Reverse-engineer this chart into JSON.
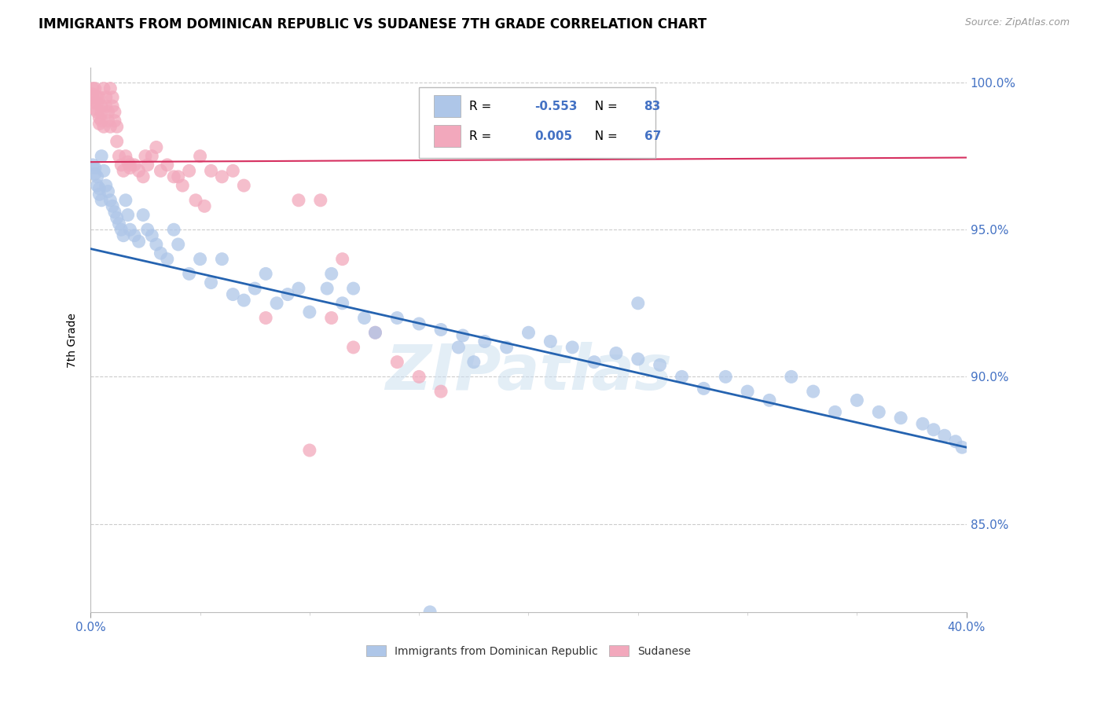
{
  "title": "IMMIGRANTS FROM DOMINICAN REPUBLIC VS SUDANESE 7TH GRADE CORRELATION CHART",
  "source": "Source: ZipAtlas.com",
  "ylabel": "7th Grade",
  "legend_blue_label": "Immigrants from Dominican Republic",
  "legend_pink_label": "Sudanese",
  "blue_color": "#aec6e8",
  "pink_color": "#f2a8bc",
  "blue_line_color": "#2563b0",
  "pink_line_color": "#d63060",
  "watermark": "ZIPatlas",
  "blue_scatter_x": [
    0.001,
    0.002,
    0.002,
    0.003,
    0.003,
    0.004,
    0.004,
    0.005,
    0.005,
    0.006,
    0.007,
    0.008,
    0.009,
    0.01,
    0.011,
    0.012,
    0.013,
    0.014,
    0.015,
    0.016,
    0.017,
    0.018,
    0.02,
    0.022,
    0.024,
    0.026,
    0.028,
    0.03,
    0.032,
    0.035,
    0.038,
    0.04,
    0.045,
    0.05,
    0.055,
    0.06,
    0.065,
    0.07,
    0.075,
    0.08,
    0.085,
    0.09,
    0.095,
    0.1,
    0.11,
    0.115,
    0.12,
    0.125,
    0.13,
    0.14,
    0.15,
    0.16,
    0.17,
    0.18,
    0.19,
    0.2,
    0.21,
    0.22,
    0.23,
    0.24,
    0.25,
    0.26,
    0.27,
    0.28,
    0.29,
    0.3,
    0.31,
    0.32,
    0.33,
    0.34,
    0.35,
    0.36,
    0.37,
    0.38,
    0.385,
    0.39,
    0.395,
    0.398,
    0.25,
    0.155,
    0.168,
    0.175,
    0.108
  ],
  "blue_scatter_y": [
    0.972,
    0.971,
    0.969,
    0.968,
    0.965,
    0.964,
    0.962,
    0.96,
    0.975,
    0.97,
    0.965,
    0.963,
    0.96,
    0.958,
    0.956,
    0.954,
    0.952,
    0.95,
    0.948,
    0.96,
    0.955,
    0.95,
    0.948,
    0.946,
    0.955,
    0.95,
    0.948,
    0.945,
    0.942,
    0.94,
    0.95,
    0.945,
    0.935,
    0.94,
    0.932,
    0.94,
    0.928,
    0.926,
    0.93,
    0.935,
    0.925,
    0.928,
    0.93,
    0.922,
    0.935,
    0.925,
    0.93,
    0.92,
    0.915,
    0.92,
    0.918,
    0.916,
    0.914,
    0.912,
    0.91,
    0.915,
    0.912,
    0.91,
    0.905,
    0.908,
    0.906,
    0.904,
    0.9,
    0.896,
    0.9,
    0.895,
    0.892,
    0.9,
    0.895,
    0.888,
    0.892,
    0.888,
    0.886,
    0.884,
    0.882,
    0.88,
    0.878,
    0.876,
    0.925,
    0.82,
    0.91,
    0.905,
    0.93
  ],
  "pink_scatter_x": [
    0.001,
    0.001,
    0.001,
    0.002,
    0.002,
    0.002,
    0.003,
    0.003,
    0.003,
    0.004,
    0.004,
    0.004,
    0.005,
    0.005,
    0.005,
    0.006,
    0.006,
    0.007,
    0.007,
    0.008,
    0.008,
    0.009,
    0.009,
    0.01,
    0.01,
    0.011,
    0.011,
    0.012,
    0.012,
    0.013,
    0.014,
    0.015,
    0.016,
    0.017,
    0.018,
    0.02,
    0.022,
    0.024,
    0.026,
    0.028,
    0.03,
    0.035,
    0.04,
    0.045,
    0.05,
    0.055,
    0.06,
    0.065,
    0.07,
    0.08,
    0.095,
    0.1,
    0.105,
    0.11,
    0.115,
    0.12,
    0.13,
    0.14,
    0.15,
    0.16,
    0.018,
    0.025,
    0.032,
    0.038,
    0.042,
    0.048,
    0.052
  ],
  "pink_scatter_y": [
    0.998,
    0.996,
    0.995,
    0.993,
    0.991,
    0.998,
    0.995,
    0.993,
    0.99,
    0.988,
    0.986,
    0.995,
    0.992,
    0.99,
    0.987,
    0.985,
    0.998,
    0.995,
    0.992,
    0.99,
    0.987,
    0.985,
    0.998,
    0.995,
    0.992,
    0.99,
    0.987,
    0.985,
    0.98,
    0.975,
    0.972,
    0.97,
    0.975,
    0.973,
    0.971,
    0.972,
    0.97,
    0.968,
    0.972,
    0.975,
    0.978,
    0.972,
    0.968,
    0.97,
    0.975,
    0.97,
    0.968,
    0.97,
    0.965,
    0.92,
    0.96,
    0.875,
    0.96,
    0.92,
    0.94,
    0.91,
    0.915,
    0.905,
    0.9,
    0.895,
    0.972,
    0.975,
    0.97,
    0.968,
    0.965,
    0.96,
    0.958
  ],
  "xlim": [
    0.0,
    0.4
  ],
  "ylim": [
    0.82,
    1.005
  ],
  "blue_trendline_x": [
    0.0,
    0.4
  ],
  "blue_trendline_y": [
    0.9435,
    0.876
  ],
  "pink_trendline_x": [
    0.0,
    0.4
  ],
  "pink_trendline_y": [
    0.973,
    0.9745
  ],
  "yticks": [
    0.85,
    0.9,
    0.95,
    1.0
  ],
  "ytick_labels": [
    "85.0%",
    "90.0%",
    "95.0%",
    "100.0%"
  ],
  "grid_color": "#cccccc",
  "title_fontsize": 12,
  "label_color": "#4472c4",
  "legend_R_blue": "-0.553",
  "legend_N_blue": "83",
  "legend_R_pink": "0.005",
  "legend_N_pink": "67"
}
